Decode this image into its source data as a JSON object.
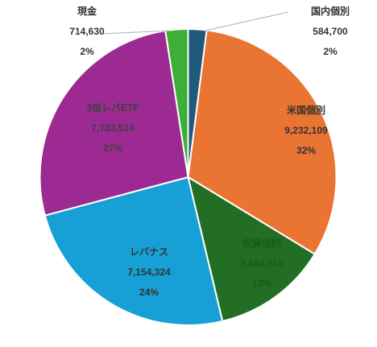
{
  "chart_data": {
    "type": "pie",
    "title": "",
    "legend": "none",
    "slices": [
      {
        "label": "国内個別",
        "value": 584700,
        "value_text": "584,700",
        "percent": "2%",
        "color": "#1f5a7a",
        "label_color": "#333333"
      },
      {
        "label": "米国個別",
        "value": 9232109,
        "value_text": "9,232,109",
        "percent": "32%",
        "color": "#ea7431",
        "label_color": "#333333"
      },
      {
        "label": "投資信託",
        "value": 3663510,
        "value_text": "3,663,510",
        "percent": "13%",
        "color": "#216e24",
        "label_color": "#1a5a1f"
      },
      {
        "label": "レバナス",
        "value": 7154324,
        "value_text": "7,154,324",
        "percent": "24%",
        "color": "#16a0d6",
        "label_color": "#333333"
      },
      {
        "label": "3倍レバETF",
        "value": 7783514,
        "value_text": "7,783,514",
        "percent": "27%",
        "color": "#9c2a92",
        "label_color": "#404040"
      },
      {
        "label": "現金",
        "value": 714630,
        "value_text": "714,630",
        "percent": "2%",
        "color": "#3fae36",
        "label_color": "#333333"
      }
    ]
  }
}
